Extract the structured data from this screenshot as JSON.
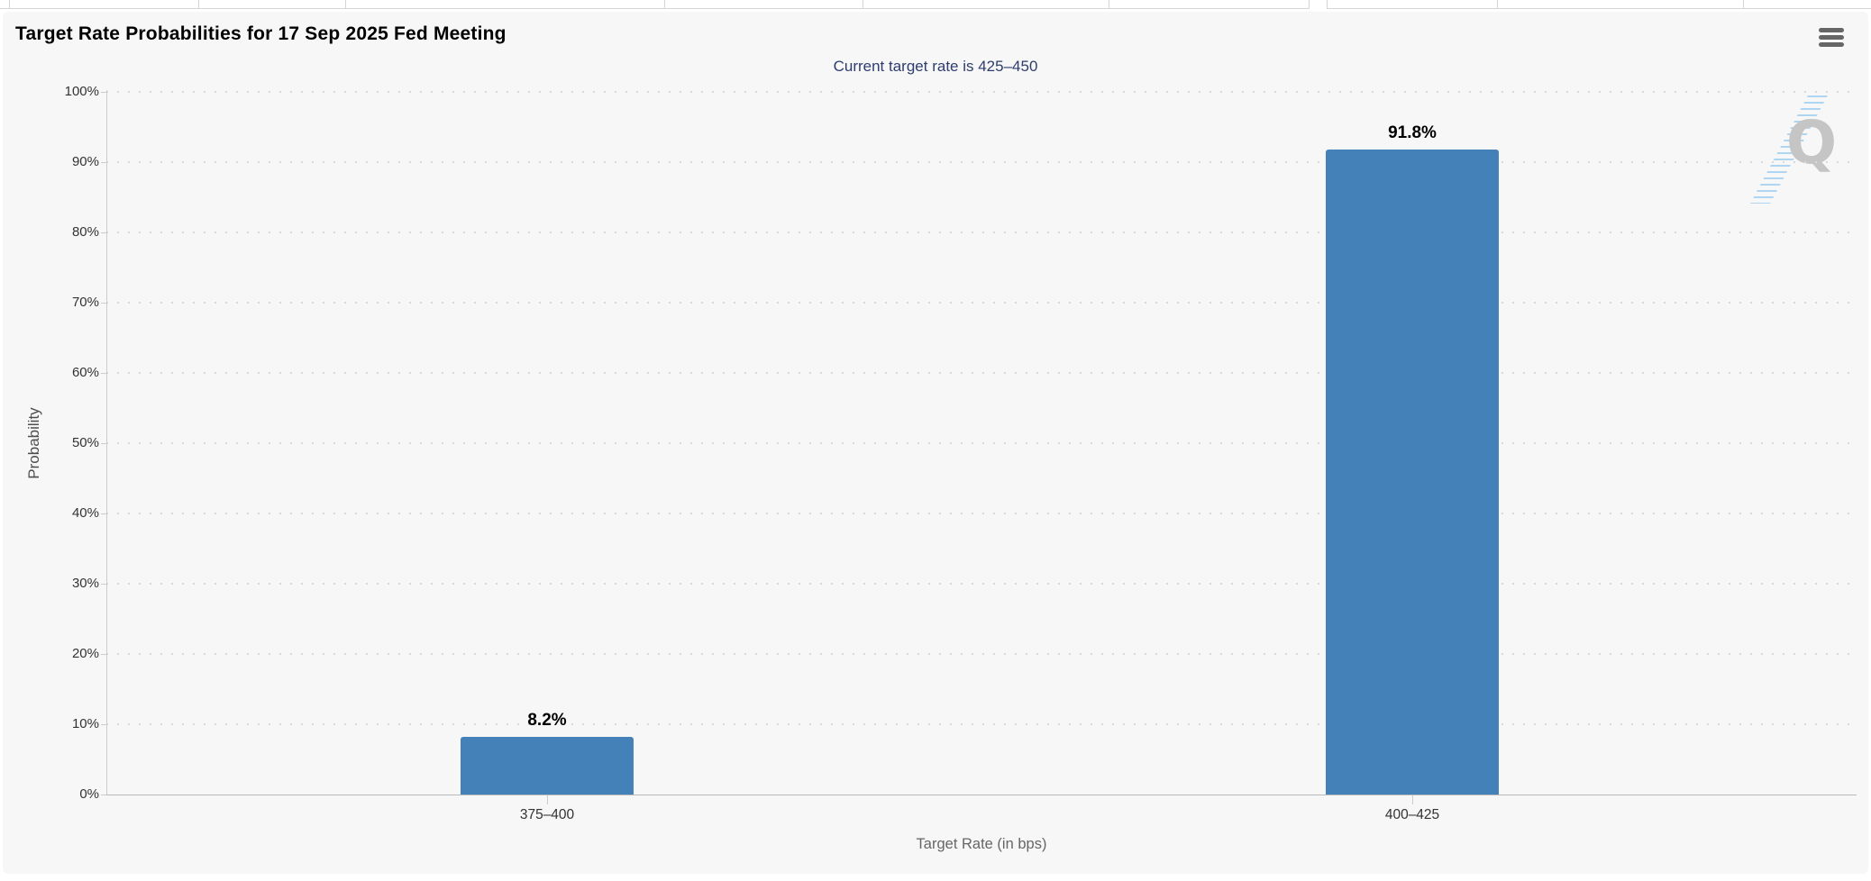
{
  "chart": {
    "title": "Target Rate Probabilities for 17 Sep 2025 Fed Meeting",
    "subtitle": "Current target rate is 425–450",
    "watermark_letter": "Q",
    "context_menu_icon": "hamburger-menu"
  },
  "chart_data": {
    "type": "bar",
    "title": "Target Rate Probabilities for 17 Sep 2025 Fed Meeting",
    "subtitle": "Current target rate is 425–450",
    "categories": [
      "375–400",
      "400–425"
    ],
    "values": [
      8.2,
      91.8
    ],
    "value_labels": [
      "8.2%",
      "91.8%"
    ],
    "xlabel": "Target Rate (in bps)",
    "ylabel": "Probability",
    "ylim": [
      0,
      100
    ],
    "ytick_interval": 10,
    "ytick_labels": [
      "0%",
      "10%",
      "20%",
      "30%",
      "40%",
      "50%",
      "60%",
      "70%",
      "80%",
      "90%",
      "100%"
    ],
    "grid": "horizontal-dotted",
    "legend": "none",
    "bar_color": "#4381b8"
  },
  "colors": {
    "bar": "#4381b8",
    "card_background": "#f7f7f7",
    "subtitle_text": "#2e3d6e",
    "axis_text": "#333333",
    "axis_title_text": "#666666",
    "gridline": "#d9d9d9",
    "axis_line": "#cccccc",
    "menu_icon": "#666666",
    "watermark_gray": "#c5c5c5",
    "watermark_blue": "#9ccdf0",
    "tab_border": "#d5d5d5"
  }
}
